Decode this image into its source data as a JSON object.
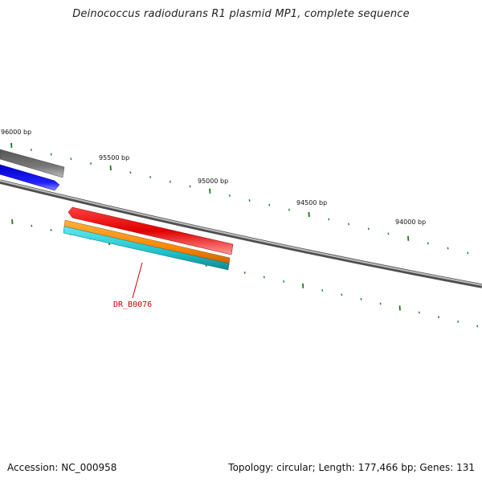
{
  "title": "Deinococcus radiodurans R1 plasmid MP1, complete sequence",
  "footer": {
    "accession": "Accession: NC_000958",
    "summary": "Topology: circular; Length: 177,466 bp; Genes: 131"
  },
  "ruler_labels": [
    {
      "text": "96000 bp"
    },
    {
      "text": "95500 bp"
    },
    {
      "text": "95000 bp"
    },
    {
      "text": "94500 bp"
    },
    {
      "text": "94000 bp"
    }
  ],
  "gene_label": "DR_B0076",
  "colors": {
    "backbone": "#8a8a8a",
    "tick": "#1a7a1a",
    "gene_gray": "#6e6e6e",
    "gene_blue": "#1a1aff",
    "gene_red": "#ee0000",
    "gene_orange": "#ff8c00",
    "gene_cyan": "#22c8d0",
    "label": "#cc0000"
  }
}
